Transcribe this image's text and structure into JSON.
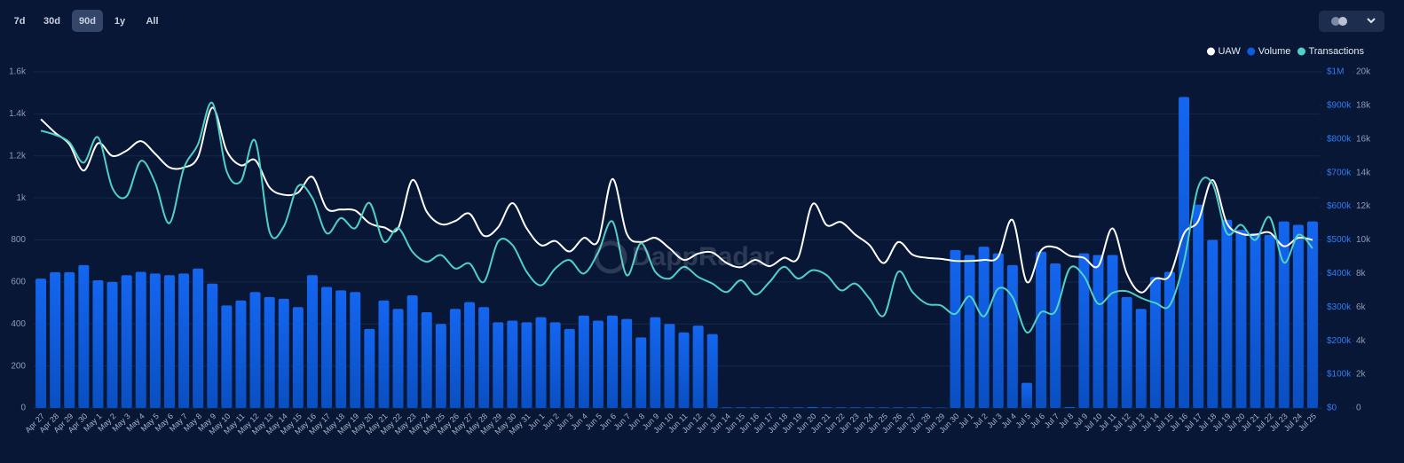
{
  "range_buttons": [
    "7d",
    "30d",
    "90d",
    "1y",
    "All"
  ],
  "selected_range": "90d",
  "watermark": "DappRadar",
  "chart_data": {
    "type": "combo",
    "categories": [
      "Apr 27",
      "Apr 28",
      "Apr 29",
      "Apr 30",
      "May 1",
      "May 2",
      "May 3",
      "May 4",
      "May 5",
      "May 6",
      "May 7",
      "May 8",
      "May 9",
      "May 10",
      "May 11",
      "May 12",
      "May 13",
      "May 14",
      "May 15",
      "May 16",
      "May 17",
      "May 18",
      "May 19",
      "May 20",
      "May 21",
      "May 22",
      "May 23",
      "May 24",
      "May 25",
      "May 26",
      "May 27",
      "May 28",
      "May 29",
      "May 30",
      "May 31",
      "Jun 1",
      "Jun 2",
      "Jun 3",
      "Jun 4",
      "Jun 5",
      "Jun 6",
      "Jun 7",
      "Jun 8",
      "Jun 9",
      "Jun 10",
      "Jun 11",
      "Jun 12",
      "Jun 13",
      "Jun 14",
      "Jun 15",
      "Jun 16",
      "Jun 17",
      "Jun 18",
      "Jun 19",
      "Jun 20",
      "Jun 21",
      "Jun 22",
      "Jun 23",
      "Jun 24",
      "Jun 25",
      "Jun 26",
      "Jun 27",
      "Jun 28",
      "Jun 29",
      "Jun 30",
      "Jul 1",
      "Jul 2",
      "Jul 3",
      "Jul 4",
      "Jul 5",
      "Jul 6",
      "Jul 7",
      "Jul 8",
      "Jul 9",
      "Jul 10",
      "Jul 11",
      "Jul 12",
      "Jul 13",
      "Jul 14",
      "Jul 15",
      "Jul 16",
      "Jul 17",
      "Jul 18",
      "Jul 19",
      "Jul 20",
      "Jul 21",
      "Jul 22",
      "Jul 23",
      "Jul 24",
      "Jul 25"
    ],
    "series": [
      {
        "name": "UAW",
        "type": "line",
        "axis": "y",
        "color": "#ffffff",
        "values": [
          1375,
          1310,
          1255,
          1130,
          1260,
          1200,
          1225,
          1270,
          1210,
          1145,
          1145,
          1195,
          1430,
          1225,
          1155,
          1180,
          1050,
          1015,
          1025,
          1100,
          950,
          945,
          940,
          880,
          860,
          855,
          1085,
          935,
          875,
          890,
          925,
          820,
          860,
          975,
          855,
          775,
          795,
          745,
          810,
          795,
          1090,
          830,
          790,
          810,
          760,
          705,
          735,
          740,
          690,
          670,
          705,
          675,
          715,
          715,
          970,
          870,
          885,
          825,
          775,
          690,
          790,
          730,
          715,
          710,
          700,
          700,
          705,
          720,
          895,
          600,
          750,
          765,
          725,
          715,
          675,
          855,
          640,
          550,
          615,
          630,
          830,
          890,
          1085,
          880,
          830,
          825,
          835,
          770,
          810,
          800
        ]
      },
      {
        "name": "Volume",
        "type": "bar",
        "axis": "y2",
        "color": "#0b5ce0",
        "values": [
          385000,
          404000,
          404000,
          425000,
          380000,
          375000,
          395000,
          405000,
          400000,
          395000,
          400000,
          415000,
          370000,
          305000,
          320000,
          345000,
          330000,
          325000,
          300000,
          395000,
          360000,
          350000,
          345000,
          235000,
          320000,
          295000,
          335000,
          285000,
          250000,
          295000,
          315000,
          300000,
          255000,
          260000,
          255000,
          270000,
          255000,
          235000,
          275000,
          260000,
          275000,
          265000,
          210000,
          270000,
          250000,
          225000,
          245000,
          220000,
          2000,
          2000,
          2000,
          2000,
          2000,
          2000,
          3000,
          2000,
          2000,
          2000,
          2000,
          2000,
          2000,
          2000,
          2000,
          1000,
          470000,
          455000,
          480000,
          460000,
          425000,
          75000,
          465000,
          430000,
          3000,
          460000,
          455000,
          455000,
          330000,
          295000,
          390000,
          405000,
          925000,
          605000,
          500000,
          560000,
          530000,
          520000,
          515000,
          555000,
          545000,
          555000
        ]
      },
      {
        "name": "Transactions",
        "type": "line",
        "axis": "y3",
        "color": "#4fd1c5",
        "values": [
          16500,
          16250,
          15800,
          14600,
          16100,
          13100,
          12600,
          14700,
          13400,
          11000,
          14250,
          15700,
          18150,
          14100,
          13500,
          15900,
          10500,
          10800,
          13200,
          12500,
          10400,
          11300,
          10700,
          12200,
          9900,
          10700,
          9300,
          8700,
          9100,
          8300,
          8600,
          7500,
          9900,
          9700,
          8100,
          7300,
          8300,
          8800,
          8000,
          9250,
          11100,
          7900,
          9800,
          8100,
          7700,
          8400,
          7800,
          7400,
          6900,
          7600,
          6750,
          7500,
          8400,
          7700,
          8200,
          7900,
          7000,
          7400,
          6500,
          5500,
          8100,
          6900,
          6200,
          6100,
          5600,
          6650,
          5450,
          7100,
          6600,
          4500,
          5700,
          5750,
          8300,
          7850,
          6200,
          6850,
          6950,
          6550,
          6250,
          6100,
          8700,
          13150,
          13350,
          10400,
          10900,
          10000,
          11350,
          8650,
          10300,
          9500
        ]
      }
    ],
    "ylim": [
      0,
      1600
    ],
    "yticks": [
      0,
      200,
      400,
      600,
      800,
      {
        "value": 1000,
        "label": "1k"
      },
      {
        "value": 1200,
        "label": "1.2k"
      },
      {
        "value": 1400,
        "label": "1.4k"
      },
      {
        "value": 1600,
        "label": "1.6k"
      }
    ],
    "y2lim": [
      0,
      1000000
    ],
    "y2ticks": [
      {
        "value": 0,
        "label": "$0"
      },
      {
        "value": 100000,
        "label": "$100k"
      },
      {
        "value": 200000,
        "label": "$200k"
      },
      {
        "value": 300000,
        "label": "$300k"
      },
      {
        "value": 400000,
        "label": "$400k"
      },
      {
        "value": 500000,
        "label": "$500k"
      },
      {
        "value": 600000,
        "label": "$600k"
      },
      {
        "value": 700000,
        "label": "$700k"
      },
      {
        "value": 800000,
        "label": "$800k"
      },
      {
        "value": 900000,
        "label": "$900k"
      },
      {
        "value": 1000000,
        "label": "$1M"
      }
    ],
    "y3lim": [
      0,
      20000
    ],
    "y3ticks": [
      0,
      {
        "value": 2000,
        "label": "2k"
      },
      {
        "value": 4000,
        "label": "4k"
      },
      {
        "value": 6000,
        "label": "6k"
      },
      {
        "value": 8000,
        "label": "8k"
      },
      {
        "value": 10000,
        "label": "10k"
      },
      {
        "value": 12000,
        "label": "12k"
      },
      {
        "value": 14000,
        "label": "14k"
      },
      {
        "value": 16000,
        "label": "16k"
      },
      {
        "value": 18000,
        "label": "18k"
      },
      {
        "value": 20000,
        "label": "20k"
      }
    ],
    "grid": true,
    "legend": "top-right"
  }
}
